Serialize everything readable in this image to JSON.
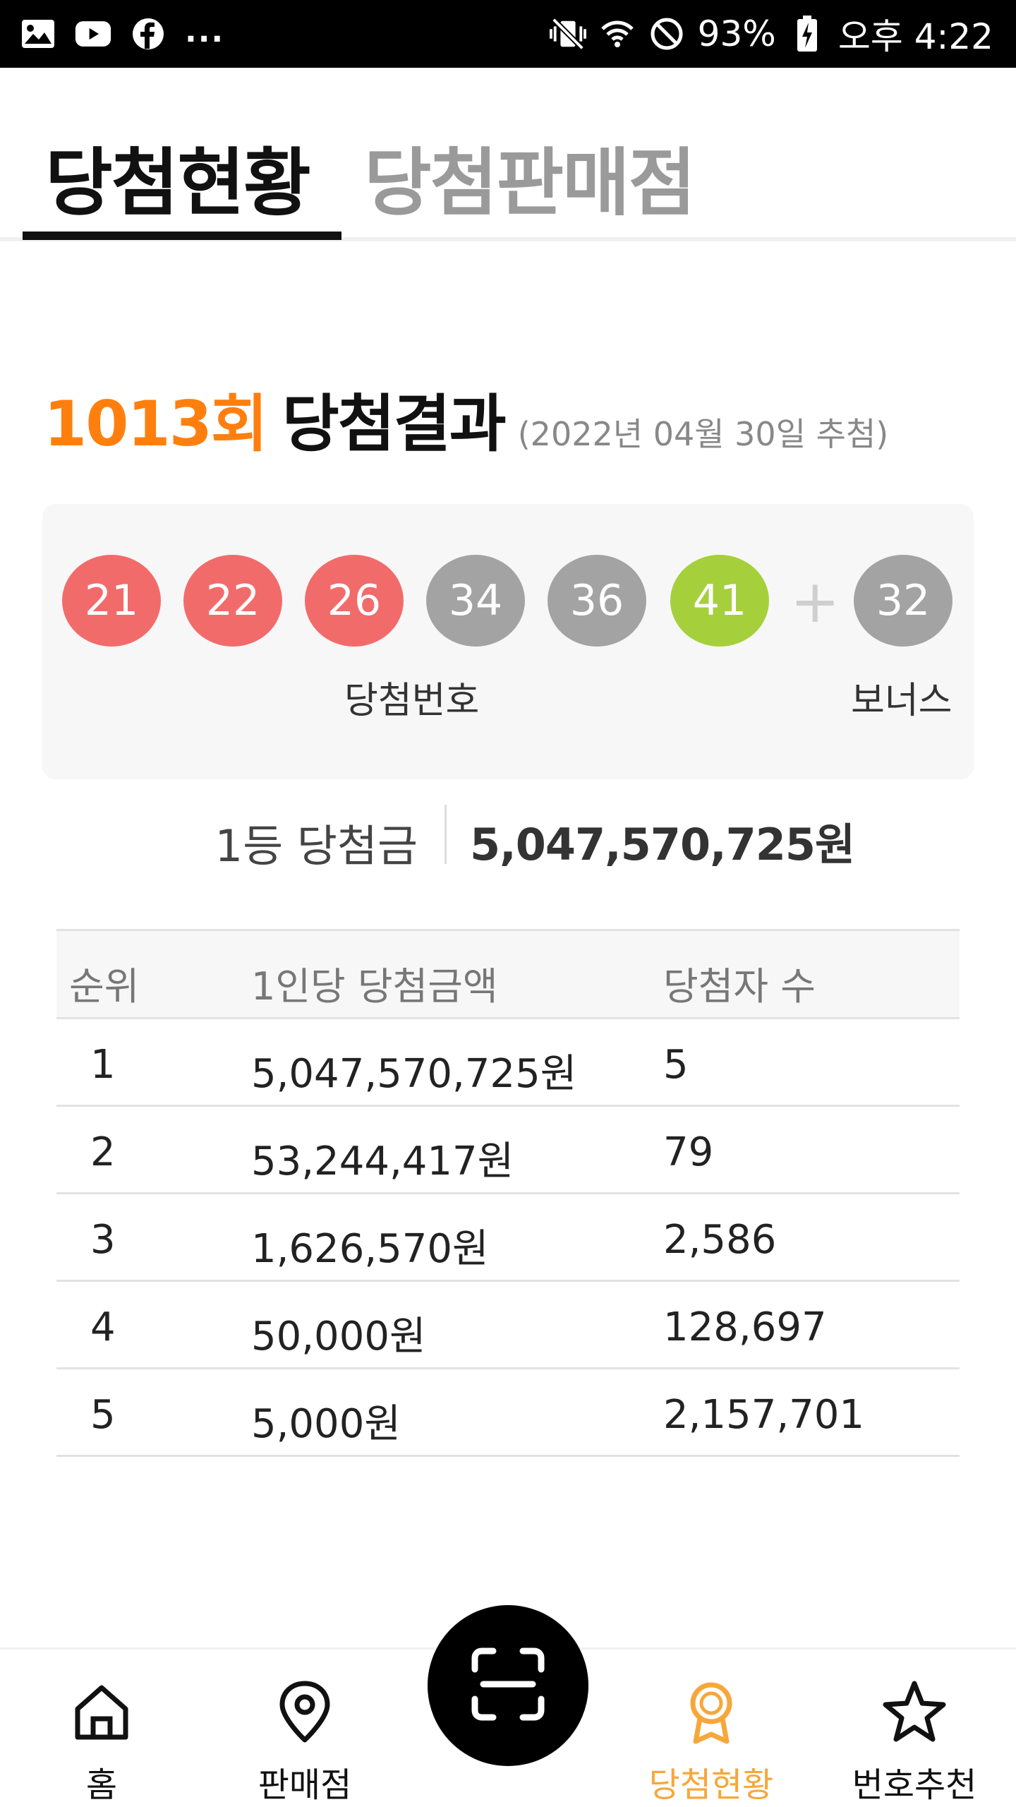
{
  "status_bar": {
    "left_icons": [
      "gallery-icon",
      "youtube-icon",
      "facebook-icon"
    ],
    "more": "...",
    "battery": "93%",
    "time": "오후 4:22",
    "right_icons": [
      "vibrate-icon",
      "wifi-icon",
      "do-not-disturb-icon",
      "battery-charging-icon"
    ]
  },
  "tabs": [
    {
      "label": "당첨현황",
      "active": true
    },
    {
      "label": "당첨판매점",
      "active": false
    }
  ],
  "round": {
    "number": "1013회",
    "title": "당첨결과",
    "date": "(2022년 04월 30일 추첨)"
  },
  "winning_numbers": {
    "balls": [
      {
        "number": "21",
        "color": "#f26b6b"
      },
      {
        "number": "22",
        "color": "#f26b6b"
      },
      {
        "number": "26",
        "color": "#f26b6b"
      },
      {
        "number": "34",
        "color": "#a3a3a3"
      },
      {
        "number": "36",
        "color": "#a3a3a3"
      },
      {
        "number": "41",
        "color": "#a6d03b"
      }
    ],
    "plus": "+",
    "bonus": {
      "number": "32",
      "color": "#a3a3a3"
    },
    "caption_main": "당첨번호",
    "caption_bonus": "보너스"
  },
  "first_prize": {
    "label": "1등 당첨금",
    "value": "5,047,570,725원"
  },
  "table": {
    "headers": [
      "순위",
      "1인당 당첨금액",
      "당첨자 수"
    ],
    "rows": [
      {
        "rank": "1",
        "amount": "5,047,570,725원",
        "winners": "5"
      },
      {
        "rank": "2",
        "amount": "53,244,417원",
        "winners": "79"
      },
      {
        "rank": "3",
        "amount": "1,626,570원",
        "winners": "2,586"
      },
      {
        "rank": "4",
        "amount": "50,000원",
        "winners": "128,697"
      },
      {
        "rank": "5",
        "amount": "5,000원",
        "winners": "2,157,701"
      }
    ]
  },
  "bottom_nav": [
    {
      "label": "홈",
      "icon": "home-icon",
      "active": false
    },
    {
      "label": "판매점",
      "icon": "map-pin-icon",
      "active": false
    },
    {
      "label": "당첨현황",
      "icon": "medal-icon",
      "active": true
    },
    {
      "label": "번호추천",
      "icon": "star-icon",
      "active": false
    }
  ],
  "scan_button": {
    "icon": "scan-icon"
  },
  "colors": {
    "accent_orange": "#ff7f0e",
    "nav_active": "#f7a73a",
    "ball_red": "#f26b6b",
    "ball_gray": "#a3a3a3",
    "ball_green": "#a6d03b"
  }
}
